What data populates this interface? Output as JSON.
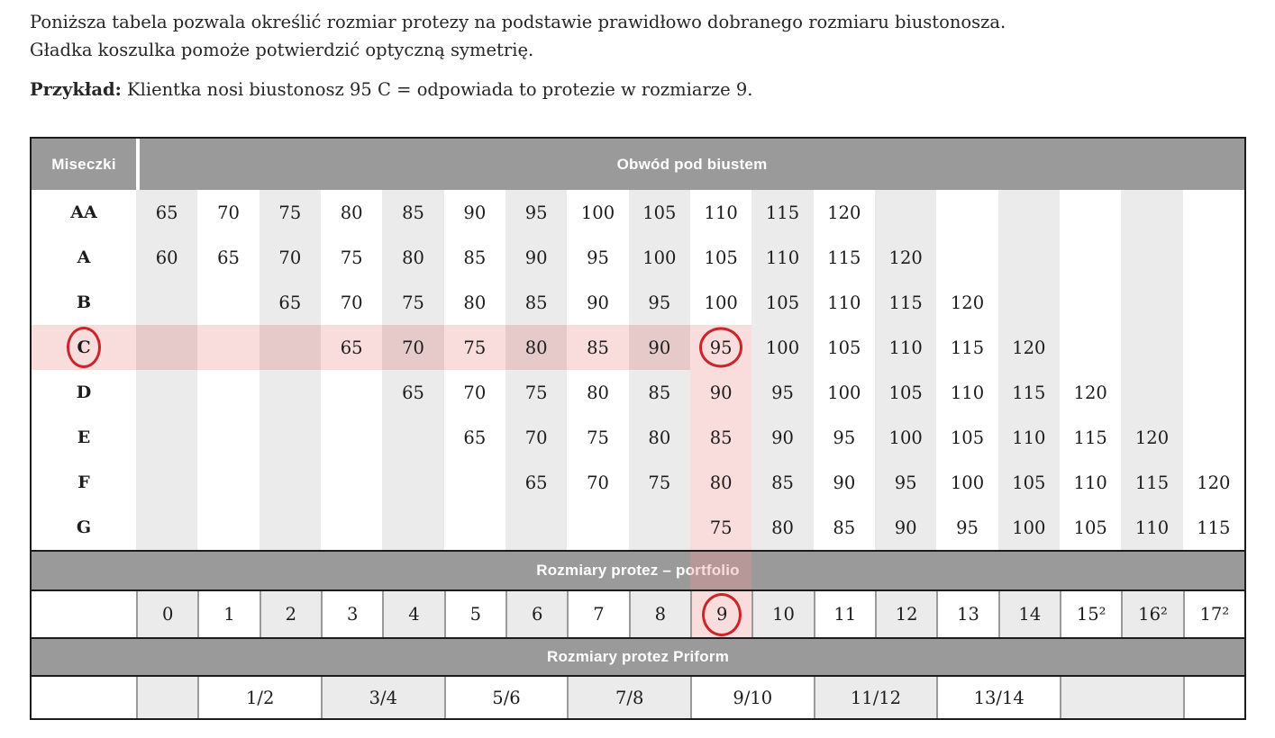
{
  "intro": {
    "line1": "Poniższa tabela pozwala określić rozmiar protezy na podstawie prawidłowo dobranego rozmiaru biustonosza.",
    "line2": "Gładka koszulka pomoże potwierdzić optyczną symetrię.",
    "example_label": "Przykład:",
    "example_text": "Klientka nosi biustonosz 95 C = odpowiada to protezie w rozmiarze 9."
  },
  "table": {
    "header_col0": "Miseczki",
    "header_span": "Obwód pod biustem",
    "columns": 18,
    "cup_rows": [
      {
        "label": "AA",
        "start": 1,
        "values": [
          "65",
          "70",
          "75",
          "80",
          "85",
          "90",
          "95",
          "100",
          "105",
          "110",
          "115",
          "120"
        ]
      },
      {
        "label": "A",
        "start": 1,
        "values": [
          "60",
          "65",
          "70",
          "75",
          "80",
          "85",
          "90",
          "95",
          "100",
          "105",
          "110",
          "115",
          "120"
        ]
      },
      {
        "label": "B",
        "start": 3,
        "values": [
          "65",
          "70",
          "75",
          "80",
          "85",
          "90",
          "95",
          "100",
          "105",
          "110",
          "115",
          "120"
        ]
      },
      {
        "label": "C",
        "start": 4,
        "values": [
          "65",
          "70",
          "75",
          "80",
          "85",
          "90",
          "95",
          "100",
          "105",
          "110",
          "115",
          "120"
        ]
      },
      {
        "label": "D",
        "start": 5,
        "values": [
          "65",
          "70",
          "75",
          "80",
          "85",
          "90",
          "95",
          "100",
          "105",
          "110",
          "115",
          "120"
        ]
      },
      {
        "label": "E",
        "start": 6,
        "values": [
          "65",
          "70",
          "75",
          "80",
          "85",
          "90",
          "95",
          "100",
          "105",
          "110",
          "115",
          "120"
        ]
      },
      {
        "label": "F",
        "start": 7,
        "values": [
          "65",
          "70",
          "75",
          "80",
          "85",
          "90",
          "95",
          "100",
          "105",
          "110",
          "115",
          "120"
        ]
      },
      {
        "label": "G",
        "start": 10,
        "values": [
          "75",
          "80",
          "85",
          "90",
          "95",
          "100",
          "105",
          "110",
          "115"
        ]
      }
    ],
    "portfolio_band": "Rozmiary protez – portfolio",
    "portfolio_sizes": [
      "0",
      "1",
      "2",
      "3",
      "4",
      "5",
      "6",
      "7",
      "8",
      "9",
      "10",
      "11",
      "12",
      "13",
      "14",
      "15²",
      "16²",
      "17²"
    ],
    "priform_band": "Rozmiary protez Priform",
    "priform_cells": [
      {
        "label": "",
        "span": 1,
        "shade": "gray"
      },
      {
        "label": "1/2",
        "span": 2,
        "shade": "white"
      },
      {
        "label": "3/4",
        "span": 2,
        "shade": "gray"
      },
      {
        "label": "5/6",
        "span": 2,
        "shade": "white"
      },
      {
        "label": "7/8",
        "span": 2,
        "shade": "gray"
      },
      {
        "label": "9/10",
        "span": 2,
        "shade": "white"
      },
      {
        "label": "11/12",
        "span": 2,
        "shade": "gray"
      },
      {
        "label": "13/14",
        "span": 2,
        "shade": "white"
      },
      {
        "label": "",
        "span": 2,
        "shade": "gray"
      },
      {
        "label": "",
        "span": 1,
        "shade": "white"
      }
    ],
    "highlight": {
      "pink_row": "C",
      "pink_row_until_col": 10,
      "pink_col": 10,
      "pink_col_from_row": "C",
      "circled_cup_label": "C",
      "circled_cup_cell": {
        "row": "C",
        "col": 10,
        "value": "95"
      },
      "circled_portfolio_col": 10
    }
  },
  "colors": {
    "band_gray": "#9a9a9a",
    "cell_gray": "#ebebeb",
    "pink": "#f9dcdc",
    "pink_on_gray": "#e6caca",
    "circle_red": "#c9252b",
    "border_dark": "#1c1c1c",
    "text": "#262626"
  }
}
